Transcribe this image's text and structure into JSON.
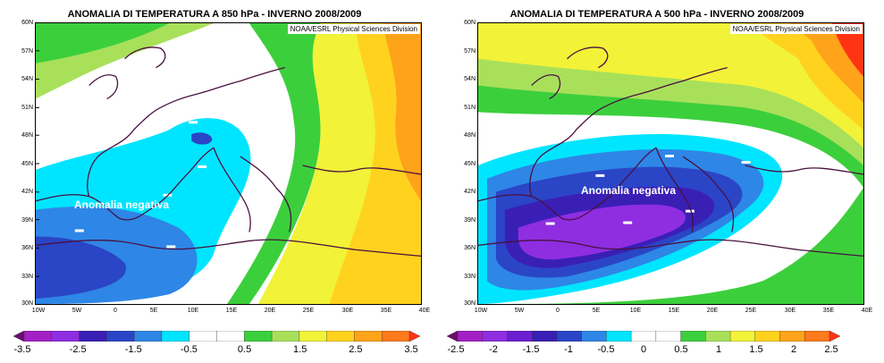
{
  "panels": [
    {
      "title": "ANOMALIA DI TEMPERATURA A 850 hPa - INVERNO 2008/2009",
      "credit": "NOAA/ESRL Physical Sciences Division",
      "annotation": "Anomalia negativa",
      "lat_labels": [
        "60N",
        "57N",
        "54N",
        "51N",
        "48N",
        "45N",
        "42N",
        "39N",
        "36N",
        "33N",
        "30N"
      ],
      "lon_labels": [
        "10W",
        "5W",
        "0",
        "5E",
        "10E",
        "15E",
        "20E",
        "25E",
        "30E",
        "35E",
        "40E"
      ],
      "colorbar": {
        "colors": [
          "#6a0e6e",
          "#a321c4",
          "#8e2ee0",
          "#3a1fb5",
          "#2a45c6",
          "#2e86e6",
          "#00e5ff",
          "#ffffff",
          "#ffffff",
          "#3ccf3c",
          "#a8e05a",
          "#f2f238",
          "#ffd21e",
          "#ffa31a",
          "#ff7a1c",
          "#ff3414"
        ],
        "labels": [
          "-3.5",
          "-2.5",
          "-1.5",
          "-0.5",
          "0.5",
          "1.5",
          "2.5",
          "3.5"
        ]
      }
    },
    {
      "title": "ANOMALIA DI TEMPERATURA A 500 hPa - INVERNO 2008/2009",
      "credit": "NOAA/ESRL Physical Sciences Division",
      "annotation": "Anomalia negativa",
      "lat_labels": [
        "60N",
        "57N",
        "54N",
        "51N",
        "48N",
        "45N",
        "42N",
        "39N",
        "36N",
        "33N",
        "30N"
      ],
      "lon_labels": [
        "10W",
        "5W",
        "0",
        "5E",
        "10E",
        "15E",
        "20E",
        "25E",
        "30E",
        "35E",
        "40E"
      ],
      "colorbar": {
        "colors": [
          "#6a0e6e",
          "#a321c4",
          "#8e2ee0",
          "#6c1fd0",
          "#3a1fb5",
          "#2a45c6",
          "#2e86e6",
          "#00e5ff",
          "#ffffff",
          "#ffffff",
          "#3ccf3c",
          "#a8e05a",
          "#f2f238",
          "#ffd21e",
          "#ffa31a",
          "#ff7a1c",
          "#ff3414"
        ],
        "labels": [
          "-2.5",
          "-2",
          "-1.5",
          "-1",
          "-0.5",
          "0",
          "0.5",
          "1",
          "1.5",
          "2",
          "2.5"
        ]
      }
    }
  ]
}
